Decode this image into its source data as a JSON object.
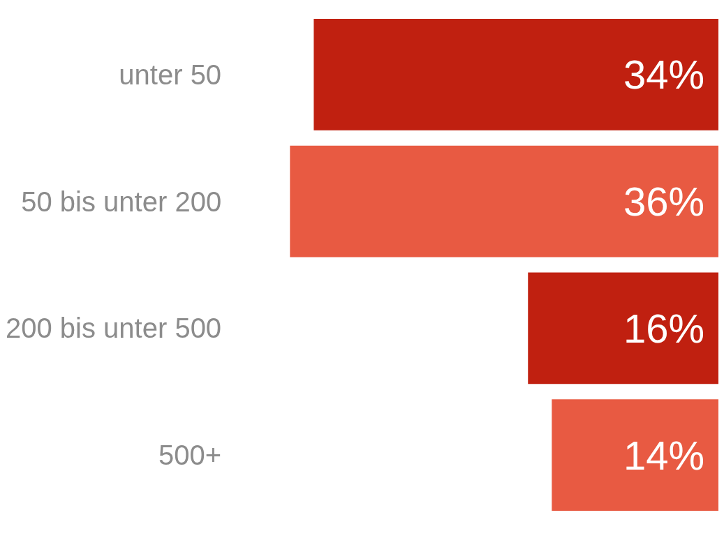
{
  "chart_data": {
    "type": "bar",
    "orientation": "horizontal",
    "categories": [
      "unter 50",
      "50 bis unter 200",
      "200 bis unter 500",
      "500+"
    ],
    "values": [
      34,
      36,
      16,
      14
    ],
    "value_labels": [
      "34%",
      "36%",
      "16%",
      "14%"
    ],
    "colors": [
      "#c02010",
      "#e85a42",
      "#c02010",
      "#e85a42"
    ]
  }
}
